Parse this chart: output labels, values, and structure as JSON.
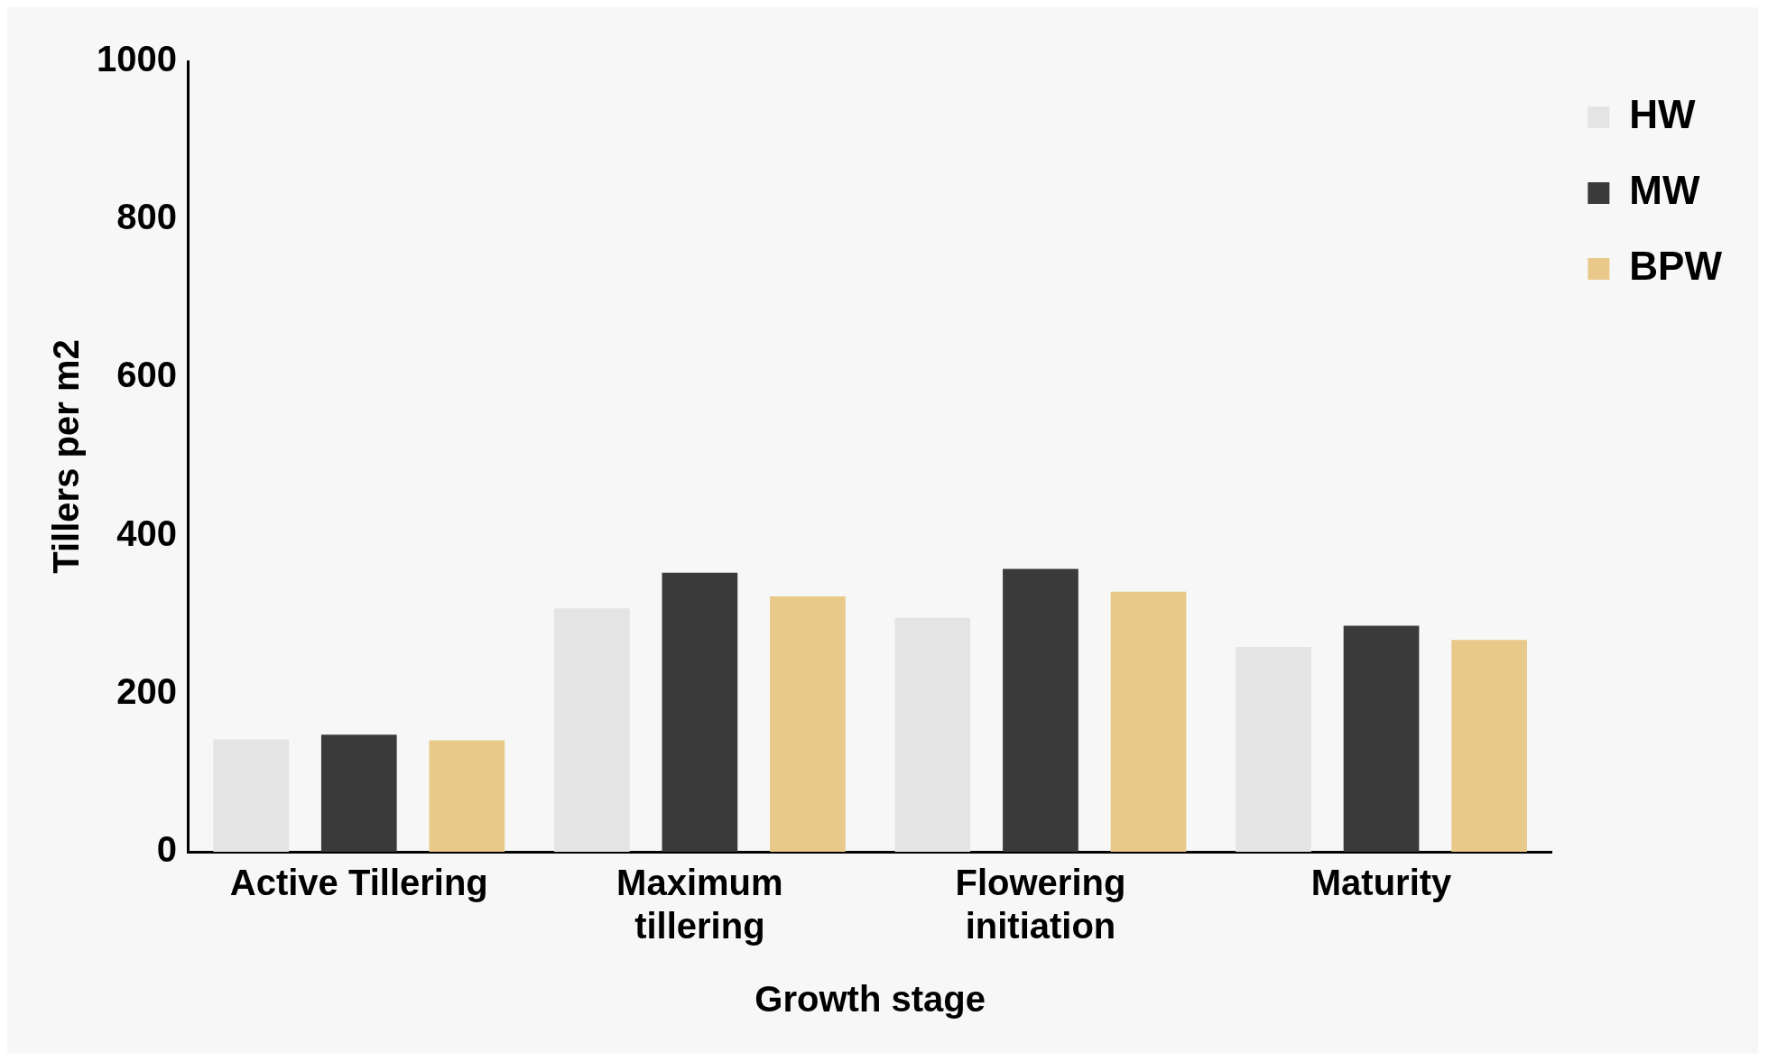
{
  "chart_data": {
    "type": "bar",
    "xlabel": "Growth stage",
    "ylabel": "Tillers per m2",
    "categories": [
      "Active Tillering",
      "Maximum\ntillering",
      "Flowering\ninitiation",
      "Maturity"
    ],
    "series": [
      {
        "name": "HW",
        "color": "#e4e4e4",
        "values": [
          142,
          308,
          296,
          259
        ]
      },
      {
        "name": "MW",
        "color": "#3a3a3a",
        "values": [
          148,
          353,
          358,
          286
        ]
      },
      {
        "name": "BPW",
        "color": "#e8c98a",
        "values": [
          141,
          323,
          329,
          268
        ]
      }
    ],
    "ylim": [
      0,
      1000
    ],
    "yticks": [
      0,
      200,
      400,
      600,
      800,
      1000
    ],
    "grid": false,
    "legend": "top right"
  }
}
